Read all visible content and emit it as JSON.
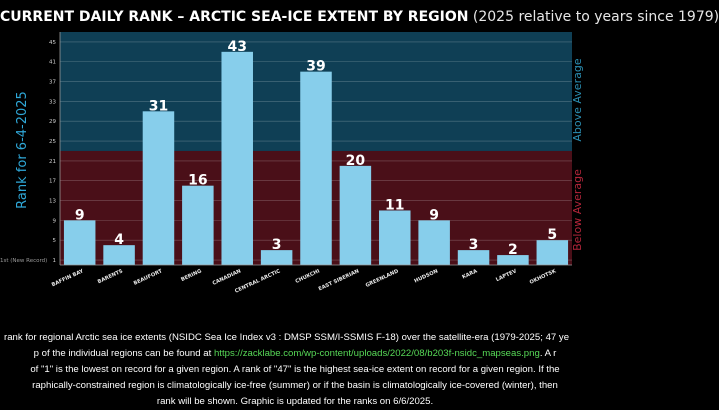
{
  "title": {
    "main": "CURRENT DAILY RANK – ARCTIC SEA-ICE EXTENT BY REGION",
    "sub": "(2025 relative to years since 1979)"
  },
  "colors": {
    "background": "#000000",
    "above_region": "#0f3f55",
    "below_region": "#4a0f18",
    "bar": "#87ceeb",
    "above_text": "#2b8fb3",
    "below_text": "#b3253a",
    "rank_axis_text": "#2fa8d8",
    "link": "#57d957"
  },
  "chart_data": {
    "type": "bar",
    "title": "CURRENT DAILY RANK – ARCTIC SEA-ICE EXTENT BY REGION",
    "ylabel": "Rank for 6-4-2025",
    "ylim": [
      0,
      47
    ],
    "yticks": [
      1,
      5,
      9,
      13,
      17,
      21,
      25,
      29,
      33,
      37,
      41,
      45
    ],
    "ytick_labels": [
      "1",
      "5",
      "9",
      "13",
      "17",
      "21",
      "25",
      "29",
      "33",
      "37",
      "41",
      "45"
    ],
    "y_note": "1st (New Record)",
    "threshold": 23,
    "above_label": "Above Average",
    "below_label": "Below Average",
    "categories": [
      "BAFFIN BAY",
      "BARENTS",
      "BEAUFORT",
      "BERING",
      "CANADIAN",
      "CENTRAL ARCTIC",
      "CHUKCHI",
      "EAST SIBERIAN",
      "GREENLAND",
      "HUDSON",
      "KARA",
      "LAPTEV",
      "OKHOTSK"
    ],
    "values": [
      9,
      4,
      31,
      16,
      43,
      3,
      39,
      20,
      11,
      9,
      3,
      2,
      5
    ],
    "data_labels": [
      "9",
      "4",
      "31",
      "16",
      "43",
      "3",
      "39",
      "20",
      "11",
      "9",
      "3",
      "2",
      "5"
    ],
    "grid": true
  },
  "caption": {
    "line1": "rank for regional Arctic sea ice extents (NSIDC Sea Ice Index v3 : DMSP SSM/I-SSMIS F-18) over the satellite-era (1979-2025; 47 ye",
    "line2_pre": "p of the individual regions can be found at ",
    "line2_link": "https://zacklabe.com/wp-content/uploads/2022/08/b203f-nsidc_mapseas.png",
    "line2_post": ". A r",
    "line3": "of \"1\" is the lowest on record for a given region. A rank of \"47\" is the highest sea-ice extent on record for a given region. If the",
    "line4": "raphically-constrained region is climatologically ice-free (summer) or if the basin is climatologically ice-covered (winter), then",
    "line5": "rank will be shown. Graphic is updated for the ranks on 6/6/2025."
  }
}
